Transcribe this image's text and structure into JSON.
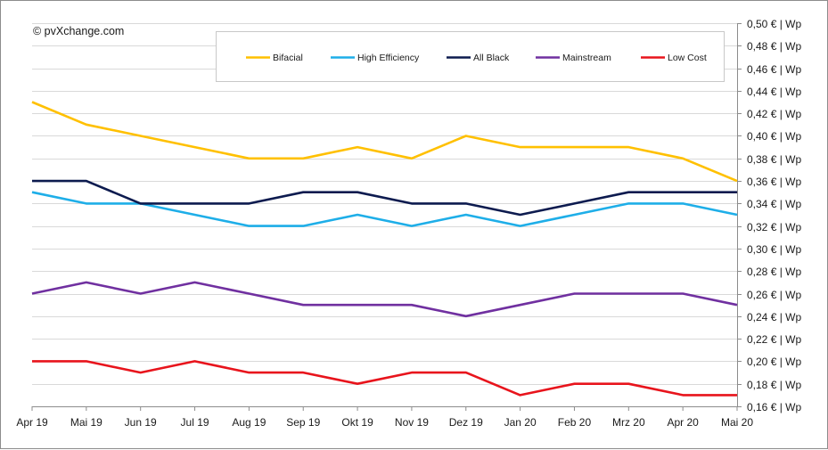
{
  "copyright": "© pvXchange.com",
  "chart_data": {
    "type": "line",
    "title": "",
    "xlabel": "",
    "ylabel": "",
    "categories": [
      "Apr 19",
      "Mai 19",
      "Jun 19",
      "Jul 19",
      "Aug 19",
      "Sep 19",
      "Okt 19",
      "Nov 19",
      "Dez 19",
      "Jan 20",
      "Feb 20",
      "Mrz 20",
      "Apr 20",
      "Mai 20"
    ],
    "ylim": [
      0.16,
      0.5
    ],
    "yticks": [
      0.5,
      0.48,
      0.46,
      0.44,
      0.42,
      0.4,
      0.38,
      0.36,
      0.34,
      0.32,
      0.3,
      0.28,
      0.26,
      0.24,
      0.22,
      0.2,
      0.18,
      0.16
    ],
    "ytick_labels": [
      "0,50 € | Wp",
      "0,48 € | Wp",
      "0,46 € | Wp",
      "0,44 € | Wp",
      "0,42 € | Wp",
      "0,40 € | Wp",
      "0,38 € | Wp",
      "0,36 € | Wp",
      "0,34 € | Wp",
      "0,32 € | Wp",
      "0,30 € | Wp",
      "0,28 € | Wp",
      "0,26 € | Wp",
      "0,24 € | Wp",
      "0,22 € | Wp",
      "0,20 € | Wp",
      "0,18 € | Wp",
      "0,16 € | Wp"
    ],
    "y_axis_side": "right",
    "grid": "horizontal",
    "legend_position": "top-right",
    "series": [
      {
        "name": "Bifacial",
        "color": "#FFC000",
        "values": [
          0.43,
          0.41,
          0.4,
          0.39,
          0.38,
          0.38,
          0.39,
          0.38,
          0.4,
          0.39,
          0.39,
          0.39,
          0.38,
          0.36
        ]
      },
      {
        "name": "High Efficiency",
        "color": "#1EAEE8",
        "values": [
          0.35,
          0.34,
          0.34,
          0.33,
          0.32,
          0.32,
          0.33,
          0.32,
          0.33,
          0.32,
          0.33,
          0.34,
          0.34,
          0.33
        ]
      },
      {
        "name": "All Black",
        "color": "#0D1B4F",
        "values": [
          0.36,
          0.36,
          0.34,
          0.34,
          0.34,
          0.35,
          0.35,
          0.34,
          0.34,
          0.33,
          0.34,
          0.35,
          0.35,
          0.35
        ]
      },
      {
        "name": "Mainstream",
        "color": "#7030A0",
        "values": [
          0.26,
          0.27,
          0.26,
          0.27,
          0.26,
          0.25,
          0.25,
          0.25,
          0.24,
          0.25,
          0.26,
          0.26,
          0.26,
          0.25
        ]
      },
      {
        "name": "Low Cost",
        "color": "#E8141C",
        "values": [
          0.2,
          0.2,
          0.19,
          0.2,
          0.19,
          0.19,
          0.18,
          0.19,
          0.19,
          0.17,
          0.18,
          0.18,
          0.17,
          0.17
        ]
      }
    ]
  }
}
